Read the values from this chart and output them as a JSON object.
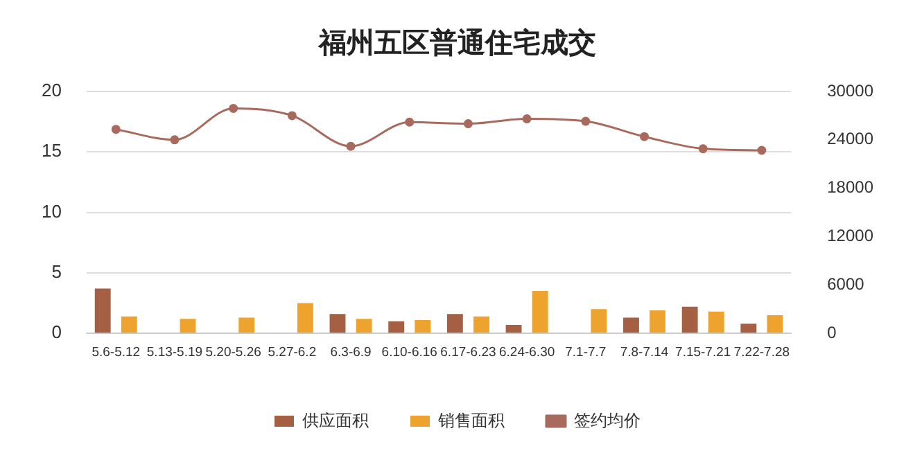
{
  "chart_data": {
    "type": "bar",
    "title": "福州五区普通住宅成交",
    "categories": [
      "5.6-5.12",
      "5.13-5.19",
      "5.20-5.26",
      "5.27-6.2",
      "6.3-6.9",
      "6.10-6.16",
      "6.17-6.23",
      "6.24-6.30",
      "7.1-7.7",
      "7.8-7.14",
      "7.15-7.21",
      "7.22-7.28"
    ],
    "series": [
      {
        "name": "供应面积",
        "color": "#a55f43",
        "values": [
          3.7,
          null,
          null,
          null,
          1.6,
          1.0,
          1.6,
          0.7,
          null,
          1.3,
          2.2,
          0.8
        ]
      },
      {
        "name": "销售面积",
        "color": "#eea32f",
        "values": [
          1.4,
          1.2,
          1.3,
          2.5,
          1.2,
          1.1,
          1.4,
          3.5,
          2.0,
          1.9,
          1.8,
          1.5
        ]
      },
      {
        "name": "签约均价",
        "type": "line",
        "axis": "y2",
        "color": "#a86a5c",
        "values": [
          25300,
          24000,
          27900,
          27000,
          23200,
          26200,
          26000,
          26600,
          26300,
          24400,
          22900,
          22700
        ]
      }
    ],
    "ylim": [
      0,
      20
    ],
    "yticks": [
      0,
      5,
      10,
      15,
      20
    ],
    "y2lim": [
      0,
      30000
    ],
    "y2ticks": [
      0,
      6000,
      12000,
      18000,
      24000,
      30000
    ],
    "grid": "y",
    "legend": "bottom",
    "marker": "circle",
    "line_style": "solid"
  }
}
